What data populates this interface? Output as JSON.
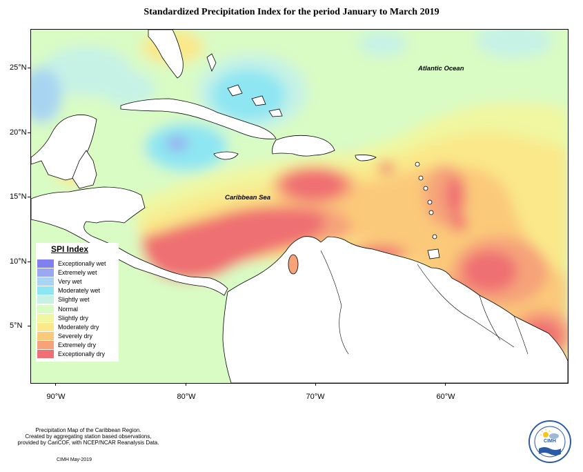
{
  "title": "Standardized Precipitation Index for the period January to March 2019",
  "map": {
    "labels": {
      "atlantic": "Atlantic Ocean",
      "caribbean": "Caribbean Sea"
    },
    "lat_ticks": [
      "25°N",
      "20°N",
      "15°N",
      "10°N",
      "5°N"
    ],
    "lon_ticks": [
      "90°W",
      "80°W",
      "70°W",
      "60°W"
    ]
  },
  "legend": {
    "title": "SPI Index",
    "items": [
      {
        "label": "Exceptionally wet",
        "color": "#8080ee"
      },
      {
        "label": "Extremely wet",
        "color": "#99a8f0"
      },
      {
        "label": "Very wet",
        "color": "#a8d4f2"
      },
      {
        "label": "Moderately wet",
        "color": "#8ee6f2"
      },
      {
        "label": "Slightly wet",
        "color": "#c6f2e6"
      },
      {
        "label": "Normal",
        "color": "#d9fbc4"
      },
      {
        "label": "Slightly dry",
        "color": "#f0f7a0"
      },
      {
        "label": "Moderately dry",
        "color": "#fae88a"
      },
      {
        "label": "Severely dry",
        "color": "#fbc97a"
      },
      {
        "label": "Extremely dry",
        "color": "#f6a37a"
      },
      {
        "label": "Exceptionally dry",
        "color": "#ef6f72"
      }
    ]
  },
  "footer": {
    "note_line1": "Precipitation Map of the Caribbean Region.",
    "note_line2": "Created by aggregating station based observations,",
    "note_line3": "provided by CariCOF, with NCEP/NCAR Reanalysis Data.",
    "credit": "CIMH May-2019",
    "logo_text": "CIMH"
  }
}
